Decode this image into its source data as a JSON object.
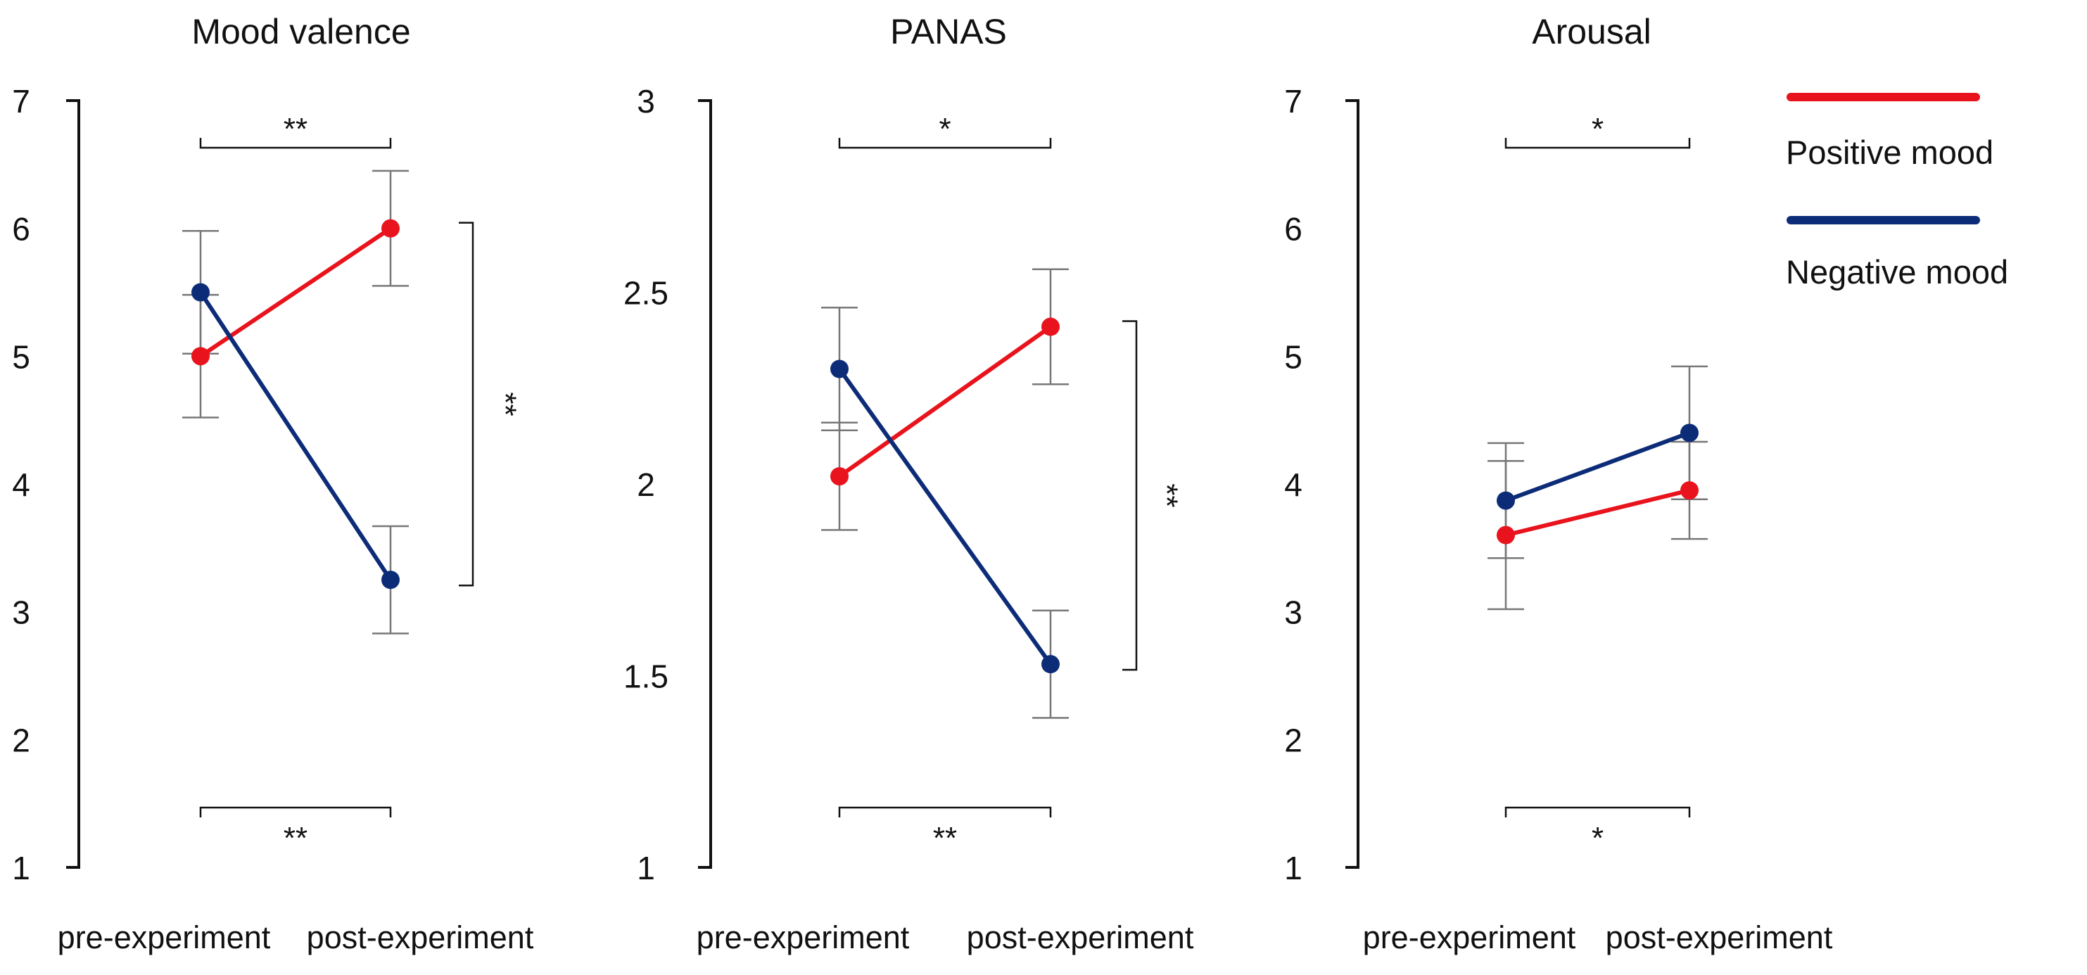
{
  "colors": {
    "positive": "#e8131c",
    "negative": "#0d2c78",
    "error_bar": "#777777",
    "axis": "#111111"
  },
  "legend": [
    {
      "label": "Positive mood",
      "series": "positive"
    },
    {
      "label": "Negative mood",
      "series": "negative"
    }
  ],
  "chart_data": [
    {
      "type": "line",
      "title": "Mood valence",
      "categories": [
        "pre-experiment",
        "post-experiment"
      ],
      "ylim": [
        1,
        7
      ],
      "yticks": [
        "1",
        "2",
        "3",
        "4",
        "5",
        "6",
        "7"
      ],
      "series": [
        {
          "name": "Positive mood",
          "key": "positive",
          "values": [
            5.0,
            6.0
          ],
          "errors": [
            0.48,
            0.45
          ]
        },
        {
          "name": "Negative mood",
          "key": "negative",
          "values": [
            5.5,
            3.25
          ],
          "errors": [
            0.48,
            0.42
          ]
        }
      ],
      "significance": {
        "top": "**",
        "bottom": "**",
        "right": "**"
      }
    },
    {
      "type": "line",
      "title": "PANAS",
      "categories": [
        "pre-experiment",
        "post-experiment"
      ],
      "ylim": [
        1,
        3
      ],
      "yticks": [
        "1",
        "1.5",
        "2",
        "2.5",
        "3"
      ],
      "series": [
        {
          "name": "Positive mood",
          "key": "positive",
          "values": [
            2.02,
            2.41
          ],
          "errors": [
            0.14,
            0.15
          ]
        },
        {
          "name": "Negative mood",
          "key": "negative",
          "values": [
            2.3,
            1.53
          ],
          "errors": [
            0.16,
            0.14
          ]
        }
      ],
      "significance": {
        "top": "*",
        "bottom": "**",
        "right": "**"
      }
    },
    {
      "type": "line",
      "title": "Arousal",
      "categories": [
        "pre-experiment",
        "post-experiment"
      ],
      "ylim": [
        1,
        7
      ],
      "yticks": [
        "1",
        "2",
        "3",
        "4",
        "5",
        "6",
        "7"
      ],
      "series": [
        {
          "name": "Positive mood",
          "key": "positive",
          "values": [
            3.6,
            3.95
          ],
          "errors": [
            0.58,
            0.38
          ]
        },
        {
          "name": "Negative mood",
          "key": "negative",
          "values": [
            3.87,
            4.4
          ],
          "errors": [
            0.45,
            0.52
          ]
        }
      ],
      "significance": {
        "top": "*",
        "bottom": "*"
      }
    }
  ]
}
